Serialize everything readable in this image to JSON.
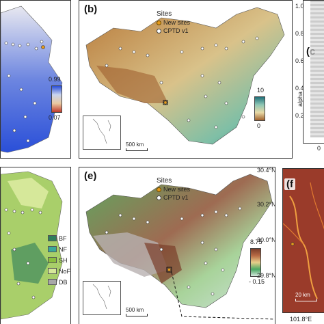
{
  "panels": {
    "a": {
      "cbar_max": "0.99",
      "cbar_min": "0.07"
    },
    "b": {
      "tag": "(b)",
      "legend_title": "Sites",
      "legend_new": "New sites",
      "legend_cptd": "CPTD v1",
      "cbar_max": "10",
      "cbar_min": "0",
      "scale": "500 km"
    },
    "c": {
      "tag": "(c",
      "axis_label": "alpha",
      "ticks": [
        "1.0",
        "0.8",
        "0.6",
        "0.4",
        "0.2"
      ],
      "x_tick": "0"
    },
    "d": {
      "classes": [
        "BF",
        "NF",
        "SH",
        "NoF",
        "DB"
      ]
    },
    "e": {
      "tag": "(e)",
      "legend_title": "Sites",
      "legend_new": "New sites",
      "legend_cptd": "CPTD v1",
      "cbar_max": "8.75",
      "cbar_min": "- 0.15",
      "scale": "500 km"
    },
    "f": {
      "tag": "(f",
      "lat_ticks": [
        "30.4°N",
        "30.2°N",
        "30.0°N",
        "29.8°N"
      ],
      "scale": "20 km",
      "lon_tick": "101.8°E"
    }
  },
  "colors": {
    "dem_high": "#7a3d2a",
    "dem_low": "#d8e8e0",
    "prob_high": "#2a4fd8",
    "prob_low": "#c0392b",
    "bf": "#2e7d5b",
    "nf": "#3aa89a",
    "sh": "#8bbf3f",
    "nof": "#d6e89a",
    "db": "#a8a8a8"
  }
}
